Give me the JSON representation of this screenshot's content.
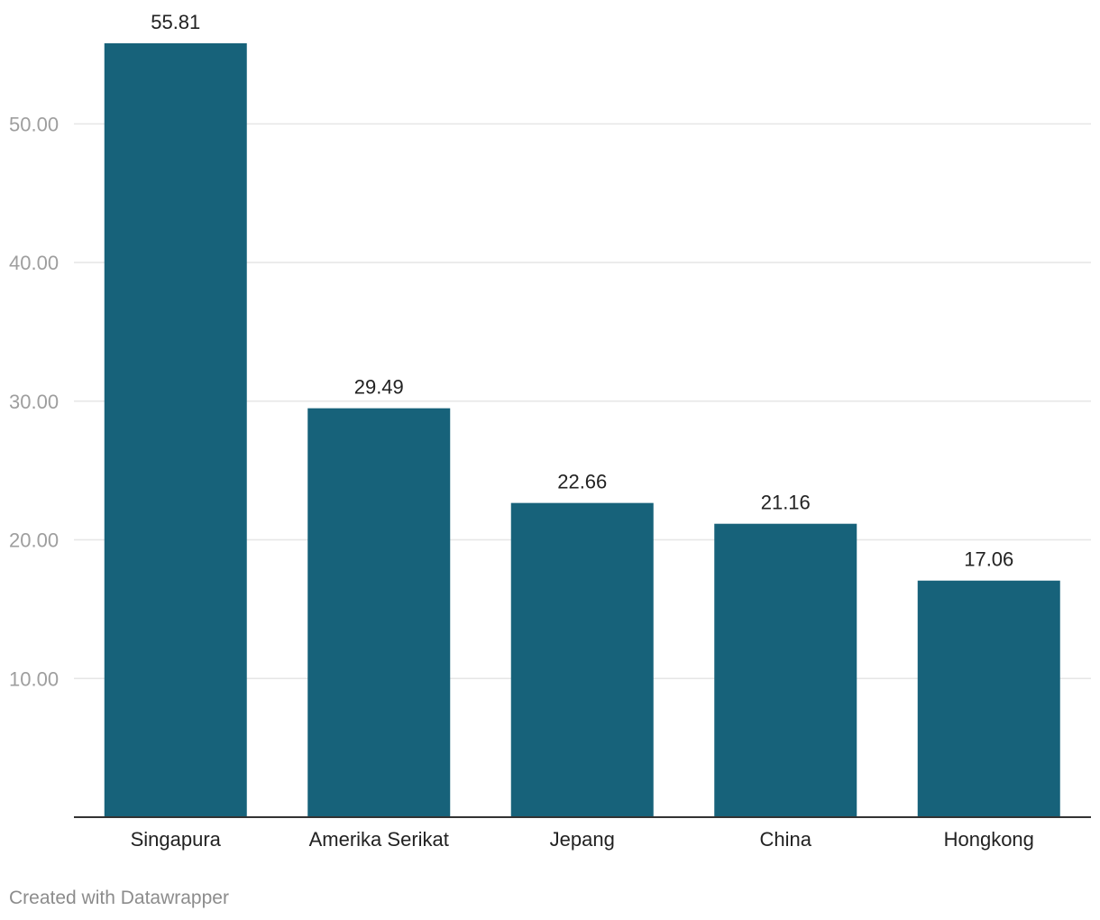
{
  "chart_data": {
    "type": "bar",
    "title": "",
    "xlabel": "",
    "ylabel": "",
    "categories": [
      "Singapura",
      "Amerika Serikat",
      "Jepang",
      "China",
      "Hongkong"
    ],
    "values": [
      55.81,
      29.49,
      22.66,
      21.16,
      17.06
    ],
    "value_labels": [
      "55.81",
      "29.49",
      "22.66",
      "21.16",
      "17.06"
    ],
    "ylim": [
      0,
      55.81
    ],
    "yticks": [
      10,
      20,
      30,
      40,
      50
    ],
    "ytick_labels": [
      "10.00",
      "20.00",
      "30.00",
      "40.00",
      "50.00"
    ],
    "grid": true,
    "legend": "none",
    "bar_color": "#17627a",
    "grid_color": "#e6e6e6",
    "tick_label_color": "#9e9e9e",
    "axis_color": "#333333",
    "value_label_color": "#222222",
    "category_label_color": "#222222"
  },
  "footer": {
    "credit": "Created with Datawrapper"
  }
}
